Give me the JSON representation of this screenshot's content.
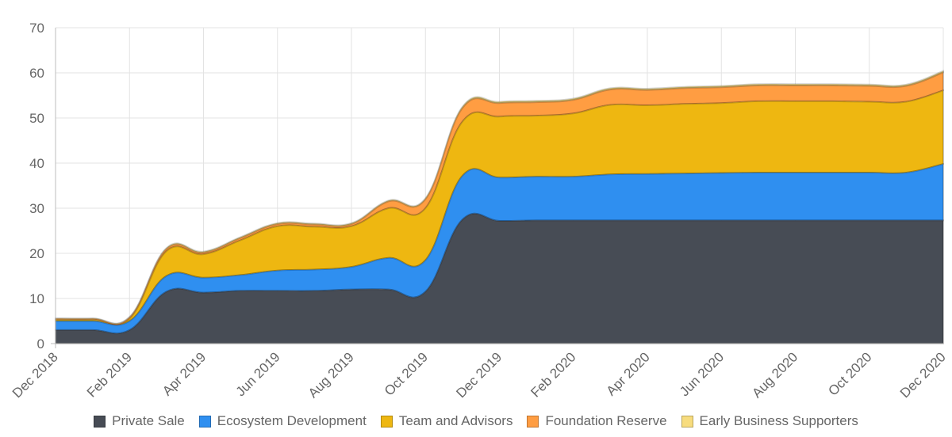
{
  "chart_data": {
    "type": "area",
    "stacked": true,
    "x": [
      "Dec 2018",
      "Jan 2019",
      "Feb 2019",
      "Mar 2019",
      "Apr 2019",
      "May 2019",
      "Jun 2019",
      "Jul 2019",
      "Aug 2019",
      "Sep 2019",
      "Oct 2019",
      "Nov 2019",
      "Dec 2019",
      "Jan 2020",
      "Feb 2020",
      "Mar 2020",
      "Apr 2020",
      "May 2020",
      "Jun 2020",
      "Jul 2020",
      "Aug 2020",
      "Sep 2020",
      "Oct 2020",
      "Nov 2020",
      "Dec 2020"
    ],
    "x_tick_labels": [
      "Dec 2018",
      "Feb 2019",
      "Apr 2019",
      "Jun 2019",
      "Aug 2019",
      "Oct 2019",
      "Dec 2019",
      "Feb 2020",
      "Apr 2020",
      "Jun 2020",
      "Aug 2020",
      "Oct 2020",
      "Dec 2020"
    ],
    "ylim": [
      0,
      70
    ],
    "y_ticks": [
      0,
      10,
      20,
      30,
      40,
      50,
      60,
      70
    ],
    "grid": true,
    "legend_position": "bottom",
    "series": [
      {
        "name": "Private Sale",
        "color": "#474c55",
        "values": [
          3,
          3,
          3,
          11.5,
          11.3,
          11.7,
          11.7,
          11.7,
          12,
          12,
          11.5,
          27.5,
          27.2,
          27.3,
          27.3,
          27.3,
          27.3,
          27.3,
          27.3,
          27.3,
          27.3,
          27.3,
          27.3,
          27.3,
          27.3
        ]
      },
      {
        "name": "Ecosystem Development",
        "color": "#2f8ff0",
        "values": [
          2,
          2,
          2,
          3.5,
          3.3,
          3.5,
          4.5,
          4.7,
          5,
          7,
          7,
          9.7,
          9.6,
          9.7,
          9.7,
          10.2,
          10.3,
          10.4,
          10.5,
          10.6,
          10.6,
          10.6,
          10.6,
          10.6,
          12.5
        ]
      },
      {
        "name": "Team and Advisors",
        "color": "#eeb711",
        "values": [
          0.3,
          0.3,
          0.5,
          5.5,
          5.2,
          7.7,
          9.8,
          9.5,
          9,
          11,
          11.5,
          12,
          13.5,
          13.5,
          14,
          15.4,
          15.2,
          15.4,
          15.5,
          15.8,
          15.8,
          15.8,
          15.7,
          15.7,
          16.3
        ]
      },
      {
        "name": "Foundation Reserve",
        "color": "#ff9d42",
        "values": [
          0.2,
          0.2,
          0.3,
          0.5,
          0.4,
          0.5,
          0.5,
          0.5,
          0.5,
          1.5,
          2,
          3,
          3,
          3,
          3,
          3.4,
          3.4,
          3.5,
          3.5,
          3.5,
          3.5,
          3.5,
          3.5,
          3.5,
          4
        ]
      },
      {
        "name": "Early Business Supporters",
        "color": "#f7dc7e",
        "values": [
          0.1,
          0.1,
          0.1,
          0.2,
          0.2,
          0.2,
          0.2,
          0.2,
          0.2,
          0.2,
          0.2,
          0.3,
          0.3,
          0.3,
          0.3,
          0.3,
          0.3,
          0.3,
          0.3,
          0.3,
          0.3,
          0.3,
          0.3,
          0.3,
          0.3
        ]
      }
    ]
  }
}
